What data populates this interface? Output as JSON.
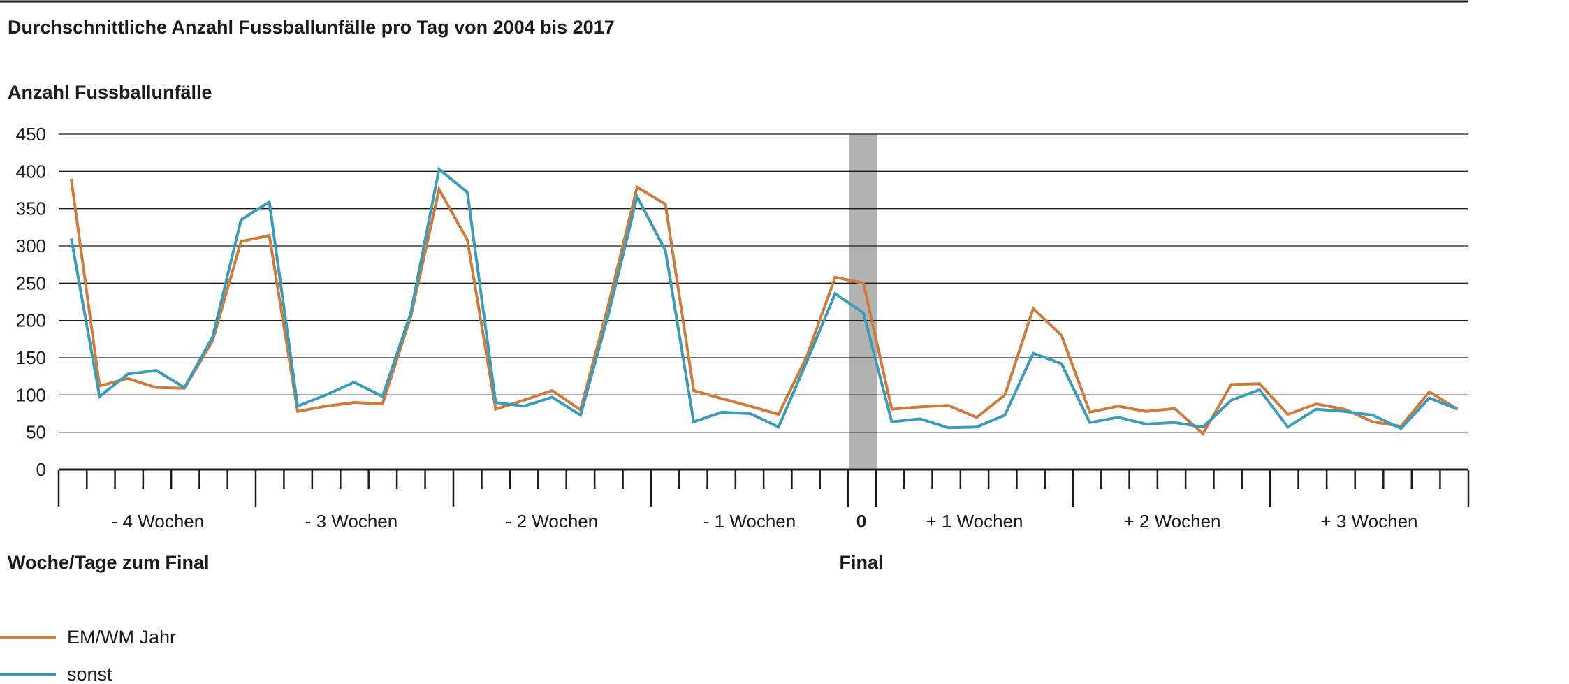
{
  "chart_data": {
    "type": "line",
    "title": "Durchschnittliche Anzahl Fussballunfälle pro Tag von 2004 bis 2017",
    "ylabel": "Anzahl Fussballunfälle",
    "xlabel": "Woche/Tage zum Final",
    "ylim": [
      0,
      450
    ],
    "yticks": [
      0,
      50,
      100,
      150,
      200,
      250,
      300,
      350,
      400,
      450
    ],
    "grid": true,
    "x_days": [
      -28,
      -27,
      -26,
      -25,
      -24,
      -23,
      -22,
      -21,
      -20,
      -19,
      -18,
      -17,
      -16,
      -15,
      -14,
      -13,
      -12,
      -11,
      -10,
      -9,
      -8,
      -7,
      -6,
      -5,
      -4,
      -3,
      -2,
      -1,
      0,
      1,
      2,
      3,
      4,
      5,
      6,
      7,
      8,
      9,
      10,
      11,
      12,
      13,
      14,
      15,
      16,
      17,
      18,
      19,
      20,
      21
    ],
    "week_groups": [
      {
        "label": "- 4 Wochen",
        "from": -28,
        "to": -21
      },
      {
        "label": "- 3 Wochen",
        "from": -21,
        "to": -14
      },
      {
        "label": "- 2 Wochen",
        "from": -14,
        "to": -7
      },
      {
        "label": "- 1 Wochen",
        "from": -7,
        "to": 0
      },
      {
        "label": "0",
        "from": 0,
        "to": 0
      },
      {
        "label": "+ 1 Wochen",
        "from": 1,
        "to": 7
      },
      {
        "label": "+ 2 Wochen",
        "from": 8,
        "to": 14
      },
      {
        "label": "+ 3 Wochen",
        "from": 15,
        "to": 21
      }
    ],
    "highlight": {
      "day": 0,
      "label": "Final"
    },
    "legend_position": "bottom-left",
    "series": [
      {
        "name": "EM/WM Jahr",
        "color": "#D07A3C",
        "values": [
          390,
          112,
          122,
          110,
          109,
          173,
          306,
          314,
          78,
          85,
          90,
          88,
          205,
          376,
          308,
          81,
          93,
          106,
          80,
          223,
          379,
          356,
          106,
          95,
          85,
          74,
          152,
          258,
          250,
          81,
          84,
          86,
          70,
          100,
          216,
          180,
          77,
          85,
          78,
          82,
          48,
          114,
          115,
          74,
          88,
          81,
          64,
          58,
          104,
          81
        ]
      },
      {
        "name": "sonst",
        "color": "#3B9CBA",
        "values": [
          310,
          98,
          128,
          133,
          110,
          178,
          335,
          359,
          85,
          100,
          117,
          98,
          210,
          403,
          372,
          90,
          85,
          97,
          73,
          210,
          366,
          294,
          64,
          77,
          75,
          57,
          145,
          236,
          210,
          64,
          68,
          56,
          57,
          73,
          156,
          142,
          63,
          70,
          61,
          63,
          57,
          93,
          107,
          57,
          81,
          78,
          73,
          55,
          96,
          81
        ]
      }
    ]
  }
}
